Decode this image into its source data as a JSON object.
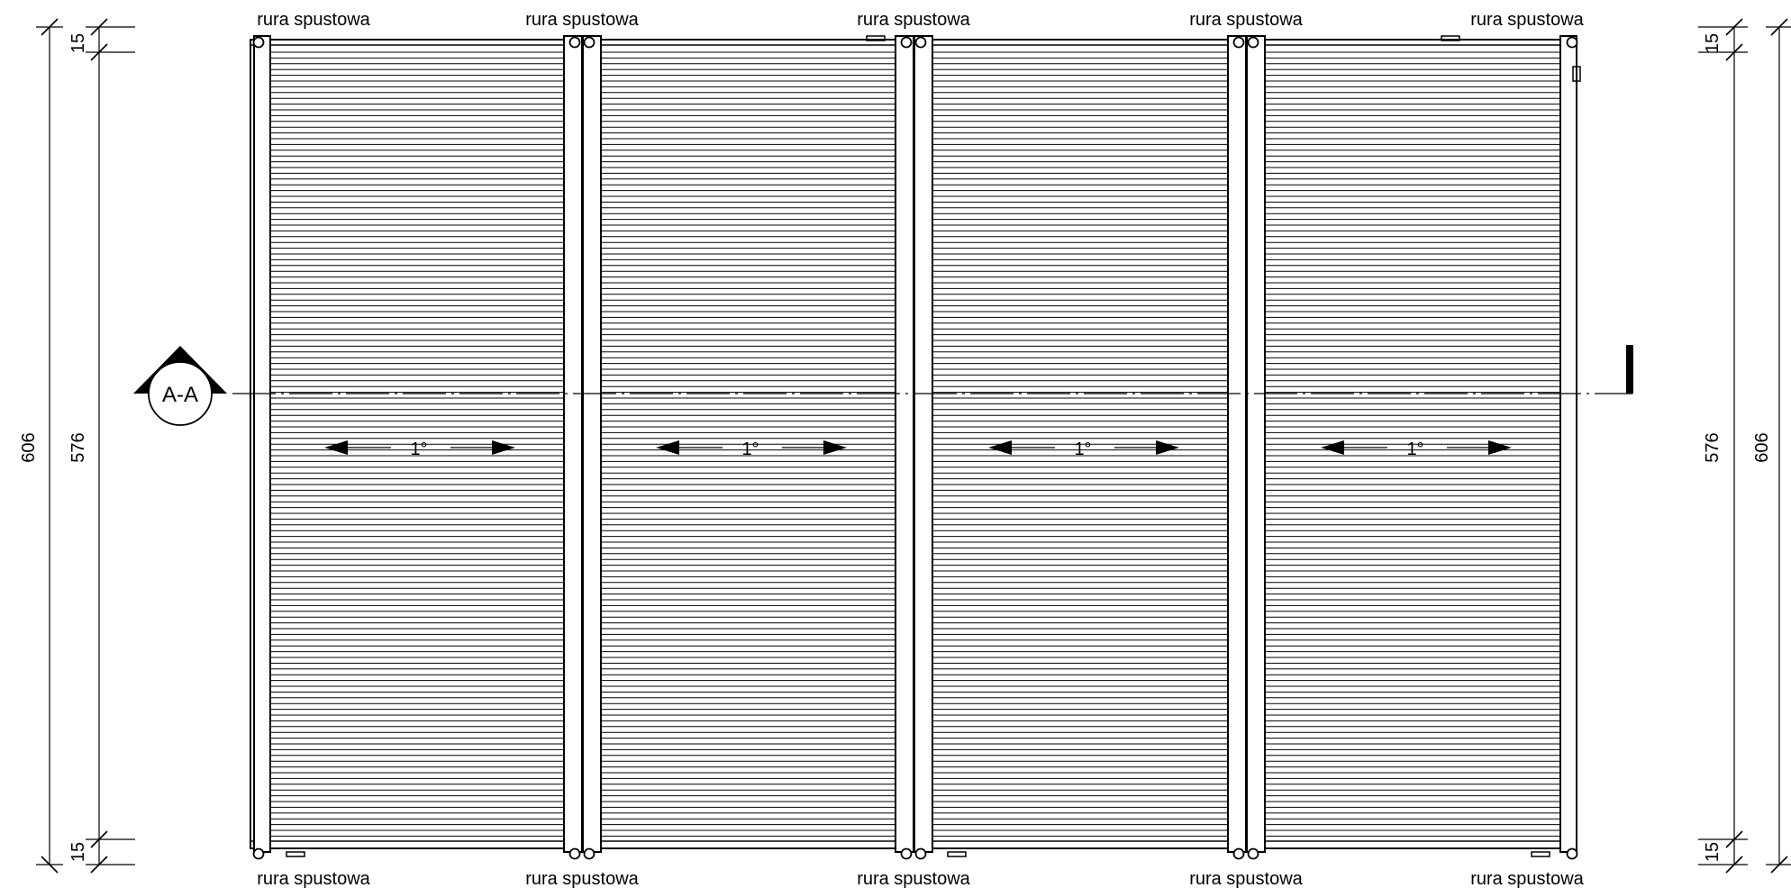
{
  "drawing": {
    "downpipe_label": "rura spustowa",
    "section_mark": "A-A",
    "slope_label": "1°",
    "dimensions": {
      "overall": "606",
      "inner": "576",
      "edge": "15"
    },
    "modules": 4,
    "downpipes_per_side": 5
  }
}
